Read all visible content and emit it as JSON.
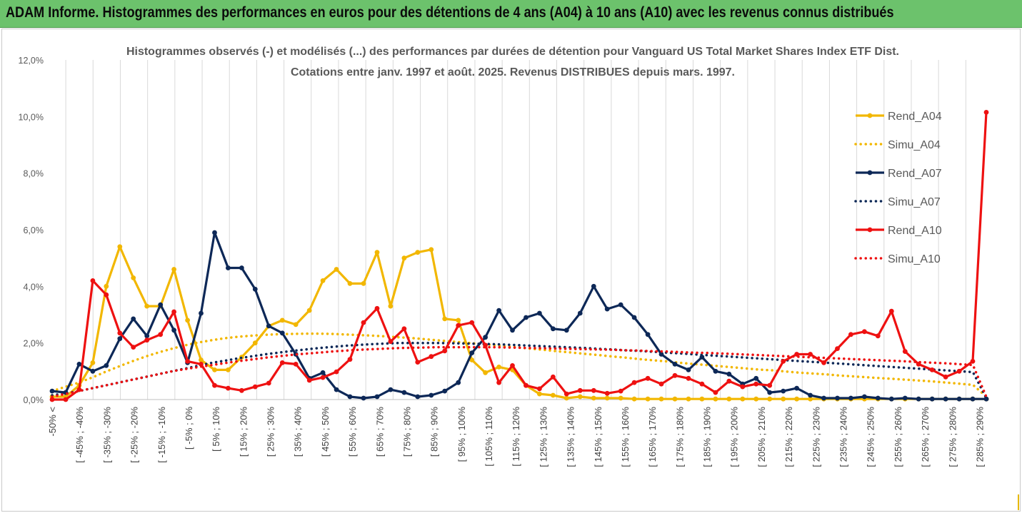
{
  "header": {
    "title": "ADAM Informe. Histogrammes des performances en euros pour des détentions de 4 ans (A04) à 10 ans (A10) avec les revenus connus distribués"
  },
  "colors": {
    "header_bg": "#6cc26c",
    "A04": "#f2b700",
    "A07": "#0d2857",
    "A10": "#ee1111",
    "grid": "#d9d9d9"
  },
  "chart_data": {
    "type": "line",
    "title_line1": "Histogrammes observés (-) et modélisés (...) des performances par durées de détention pour Vanguard US Total Market Shares Index ETF Dist.",
    "title_line2": "Cotations entre janv. 1997 et août. 2025. Revenus DISTRIBUES depuis mars. 1997.",
    "ylim": [
      0,
      12
    ],
    "yticks": [
      "0,0%",
      "2,0%",
      "4,0%",
      "6,0%",
      "8,0%",
      "10,0%",
      "12,0%"
    ],
    "grid": "vertical",
    "legend_position": "right",
    "xticklabels": [
      "-50% <",
      "[ -45% ; -40%",
      "[ -35% ; -30%",
      "[ -25% ; -20%",
      "[ -15% ; -10%",
      "[ -5% ; 0%",
      "[ 5% ; 10%",
      "[ 15% ; 20%",
      "[ 25% ; 30%",
      "[ 35% ; 40%",
      "[ 45% ; 50%",
      "[ 55% ; 60%",
      "[ 65% ; 70%",
      "[ 75% ; 80%",
      "[ 85% ; 90%",
      "[ 95% ; 100%",
      "[ 105% ; 110%",
      "[ 115% ; 120%",
      "[ 125% ; 130%",
      "[ 135% ; 140%",
      "[ 145% ; 150%",
      "[ 155% ; 160%",
      "[ 165% ; 170%",
      "[ 175% ; 180%",
      "[ 185% ; 190%",
      "[ 195% ; 200%",
      "[ 205% ; 210%",
      "[ 215% ; 220%",
      "[ 225% ; 230%",
      "[ 235% ; 240%",
      "[ 245% ; 250%",
      "[ 255% ; 260%",
      "[ 265% ; 270%",
      "[ 275% ; 280%",
      "[ 285% ; 290%"
    ],
    "series": [
      {
        "name": "Rend_A04",
        "style": "solid",
        "color": "#f2b700",
        "values": [
          0.1,
          0.1,
          0.5,
          1.3,
          4.0,
          5.4,
          4.3,
          3.3,
          3.3,
          4.6,
          2.8,
          1.4,
          1.05,
          1.05,
          1.5,
          2.0,
          2.6,
          2.8,
          2.65,
          3.15,
          4.2,
          4.6,
          4.1,
          4.1,
          5.2,
          3.3,
          5.0,
          5.2,
          5.3,
          2.85,
          2.8,
          1.4,
          0.95,
          1.15,
          1.05,
          0.5,
          0.2,
          0.15,
          0.05,
          0.1,
          0.05,
          0.05,
          0.05,
          0.02,
          0.02,
          0.02,
          0.02,
          0.02,
          0.02,
          0.02,
          0.02,
          0.02,
          0.02,
          0.02,
          0.02,
          0.02,
          0.02,
          0.02,
          0.02,
          0.02,
          0.02,
          0.02,
          0.02,
          0.02,
          0.02,
          0.02,
          0.02,
          0.02,
          0.02,
          0.02
        ]
      },
      {
        "name": "Simu_A04",
        "style": "dotted",
        "color": "#f2b700",
        "values": [
          0.3,
          0.45,
          0.6,
          0.78,
          0.98,
          1.17,
          1.35,
          1.52,
          1.67,
          1.8,
          1.92,
          2.02,
          2.1,
          2.17,
          2.22,
          2.26,
          2.29,
          2.31,
          2.32,
          2.33,
          2.33,
          2.32,
          2.3,
          2.28,
          2.26,
          2.23,
          2.2,
          2.17,
          2.13,
          2.09,
          2.05,
          2.01,
          1.97,
          1.93,
          1.88,
          1.84,
          1.79,
          1.75,
          1.7,
          1.66,
          1.61,
          1.57,
          1.52,
          1.48,
          1.43,
          1.39,
          1.35,
          1.3,
          1.26,
          1.22,
          1.18,
          1.14,
          1.1,
          1.06,
          1.03,
          0.99,
          0.95,
          0.92,
          0.89,
          0.85,
          0.82,
          0.79,
          0.76,
          0.73,
          0.7,
          0.67,
          0.64,
          0.6,
          0.56,
          0.52,
          0.1
        ]
      },
      {
        "name": "Rend_A07",
        "style": "solid",
        "color": "#0d2857",
        "values": [
          0.3,
          0.25,
          1.25,
          1.0,
          1.2,
          2.15,
          2.85,
          2.25,
          3.35,
          2.45,
          1.3,
          3.05,
          5.9,
          4.65,
          4.65,
          3.9,
          2.6,
          2.35,
          1.6,
          0.75,
          0.95,
          0.35,
          0.1,
          0.05,
          0.1,
          0.35,
          0.25,
          0.1,
          0.15,
          0.3,
          0.6,
          1.65,
          2.2,
          3.15,
          2.45,
          2.9,
          3.05,
          2.5,
          2.45,
          3.05,
          4.0,
          3.2,
          3.35,
          2.9,
          2.3,
          1.6,
          1.25,
          1.05,
          1.5,
          1.0,
          0.9,
          0.55,
          0.75,
          0.25,
          0.3,
          0.4,
          0.15,
          0.05,
          0.05,
          0.05,
          0.1,
          0.05,
          0.02,
          0.05,
          0.02,
          0.02,
          0.02,
          0.02,
          0.02,
          0.02
        ]
      },
      {
        "name": "Simu_A07",
        "style": "dotted",
        "color": "#0d2857",
        "values": [
          0.15,
          0.22,
          0.3,
          0.4,
          0.5,
          0.6,
          0.7,
          0.8,
          0.9,
          1.0,
          1.1,
          1.2,
          1.3,
          1.38,
          1.46,
          1.53,
          1.6,
          1.66,
          1.72,
          1.77,
          1.82,
          1.86,
          1.9,
          1.93,
          1.96,
          1.98,
          2.0,
          2.0,
          2.0,
          2.0,
          1.99,
          1.98,
          1.97,
          1.96,
          1.94,
          1.92,
          1.9,
          1.88,
          1.86,
          1.84,
          1.82,
          1.79,
          1.77,
          1.74,
          1.72,
          1.69,
          1.66,
          1.63,
          1.6,
          1.57,
          1.54,
          1.51,
          1.48,
          1.45,
          1.42,
          1.39,
          1.36,
          1.33,
          1.3,
          1.27,
          1.24,
          1.21,
          1.18,
          1.15,
          1.12,
          1.09,
          1.06,
          1.03,
          1.0,
          0.97,
          0.05
        ]
      },
      {
        "name": "Rend_A10",
        "style": "solid",
        "color": "#ee1111",
        "values": [
          0.0,
          0.0,
          0.35,
          4.2,
          3.7,
          2.35,
          1.85,
          2.1,
          2.3,
          3.1,
          1.35,
          1.25,
          0.5,
          0.4,
          0.32,
          0.45,
          0.58,
          1.3,
          1.25,
          0.68,
          0.78,
          0.98,
          1.42,
          2.72,
          3.22,
          2.05,
          2.5,
          1.32,
          1.52,
          1.72,
          2.62,
          2.72,
          1.92,
          0.6,
          1.2,
          0.5,
          0.38,
          0.8,
          0.2,
          0.32,
          0.32,
          0.22,
          0.3,
          0.6,
          0.75,
          0.55,
          0.85,
          0.75,
          0.55,
          0.25,
          0.65,
          0.45,
          0.55,
          0.5,
          1.35,
          1.6,
          1.6,
          1.3,
          1.8,
          2.3,
          2.4,
          2.25,
          3.12,
          1.7,
          1.25,
          1.05,
          0.8,
          1.0,
          1.35,
          10.15
        ]
      },
      {
        "name": "Simu_A10",
        "style": "dotted",
        "color": "#ee1111",
        "values": [
          0.1,
          0.2,
          0.3,
          0.4,
          0.5,
          0.6,
          0.7,
          0.8,
          0.9,
          1.0,
          1.08,
          1.15,
          1.22,
          1.29,
          1.36,
          1.42,
          1.48,
          1.53,
          1.58,
          1.62,
          1.66,
          1.7,
          1.73,
          1.76,
          1.78,
          1.8,
          1.82,
          1.83,
          1.84,
          1.85,
          1.85,
          1.85,
          1.85,
          1.85,
          1.84,
          1.83,
          1.82,
          1.81,
          1.8,
          1.79,
          1.78,
          1.77,
          1.76,
          1.74,
          1.73,
          1.71,
          1.7,
          1.68,
          1.66,
          1.65,
          1.63,
          1.61,
          1.59,
          1.57,
          1.55,
          1.53,
          1.51,
          1.49,
          1.47,
          1.45,
          1.43,
          1.41,
          1.39,
          1.37,
          1.35,
          1.32,
          1.3,
          1.28,
          1.25,
          1.22,
          0.1
        ]
      }
    ]
  }
}
